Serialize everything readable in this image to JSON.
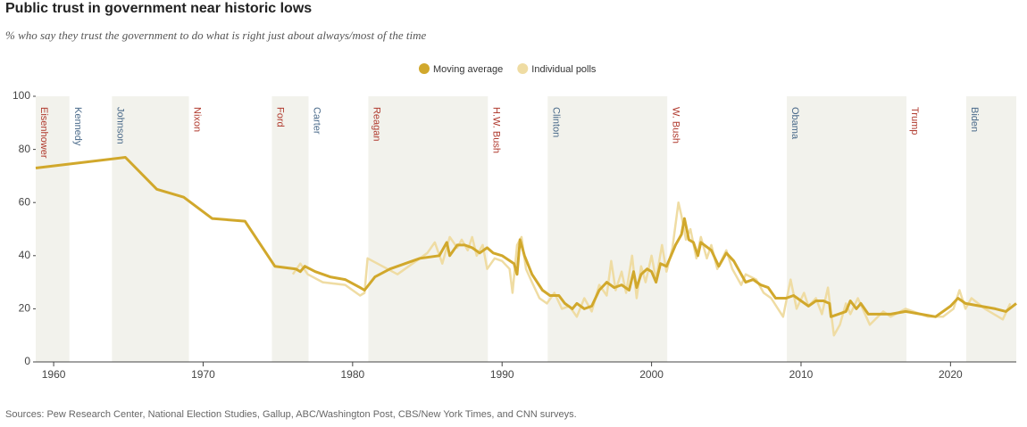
{
  "chart_data": {
    "type": "line",
    "title": "Public trust in government near historic lows",
    "subtitle": "% who say they trust the government to do what is right just about always/most of the time",
    "source": "Sources: Pew Research Center, National Election Studies, Gallup, ABC/Washington Post, CBS/New York Times, and CNN surveys.",
    "xlim": [
      1958.8,
      2024.4
    ],
    "xticks": [
      1960,
      1970,
      1980,
      1990,
      2000,
      2010,
      2020
    ],
    "ylim": [
      0,
      100
    ],
    "yticks": [
      0,
      20,
      40,
      60,
      80,
      100
    ],
    "grid": false,
    "legend": "top",
    "presidents": [
      {
        "name": "Eisenhower",
        "start": 1958.8,
        "color": "#b03a2e"
      },
      {
        "name": "Kennedy",
        "start": 1961.05,
        "color": "#4a6a8a"
      },
      {
        "name": "Johnson",
        "start": 1963.9,
        "color": "#4a6a8a"
      },
      {
        "name": "Nixon",
        "start": 1969.05,
        "color": "#b03a2e"
      },
      {
        "name": "Ford",
        "start": 1974.6,
        "color": "#b03a2e"
      },
      {
        "name": "Carter",
        "start": 1977.05,
        "color": "#4a6a8a"
      },
      {
        "name": "Reagan",
        "start": 1981.05,
        "color": "#b03a2e"
      },
      {
        "name": "H.W. Bush",
        "start": 1989.05,
        "color": "#b03a2e"
      },
      {
        "name": "Clinton",
        "start": 1993.05,
        "color": "#4a6a8a"
      },
      {
        "name": "W. Bush",
        "start": 2001.05,
        "color": "#b03a2e"
      },
      {
        "name": "Obama",
        "start": 2009.05,
        "color": "#4a6a8a"
      },
      {
        "name": "Trump",
        "start": 2017.05,
        "color": "#b03a2e"
      },
      {
        "name": "Biden",
        "start": 2021.05,
        "color": "#4a6a8a"
      }
    ],
    "series": [
      {
        "name": "Individual polls",
        "color": "#efdca3",
        "x": [
          1976,
          1976.5,
          1977,
          1978,
          1979.5,
          1980.5,
          1980.8,
          1981,
          1982,
          1983,
          1984.5,
          1985,
          1985.5,
          1986,
          1986.5,
          1987,
          1987.3,
          1987.7,
          1988,
          1988.3,
          1988.7,
          1989,
          1989.5,
          1990,
          1990.5,
          1990.7,
          1991,
          1991.3,
          1991.6,
          1992,
          1992.5,
          1993,
          1993.5,
          1994,
          1994.5,
          1995,
          1995.5,
          1996,
          1996.5,
          1997,
          1997.3,
          1997.6,
          1998,
          1998.3,
          1998.7,
          1999,
          1999.3,
          1999.6,
          2000,
          2000.3,
          2000.7,
          2001,
          2001.4,
          2001.8,
          2002,
          2002.3,
          2002.6,
          2003,
          2003.3,
          2003.7,
          2004,
          2004.4,
          2005,
          2005.4,
          2006,
          2006.3,
          2007,
          2007.5,
          2008,
          2008.8,
          2009.3,
          2009.7,
          2010.2,
          2010.5,
          2011,
          2011.4,
          2011.8,
          2012.2,
          2012.6,
          2013,
          2013.3,
          2013.8,
          2014.2,
          2014.6,
          2015.5,
          2016,
          2017,
          2018.5,
          2019.5,
          2020.2,
          2020.6,
          2021,
          2021.4,
          2022.3,
          2023.5,
          2024
        ],
        "values": [
          33,
          37,
          33,
          30,
          29,
          25,
          26,
          39,
          36,
          33,
          39,
          41,
          45,
          37,
          47,
          43,
          46,
          42,
          47,
          40,
          44,
          35,
          39,
          38,
          35,
          26,
          44,
          47,
          35,
          30,
          24,
          22,
          26,
          20,
          21,
          17,
          24,
          19,
          29,
          25,
          38,
          27,
          34,
          26,
          40,
          24,
          36,
          30,
          40,
          31,
          44,
          34,
          43,
          60,
          55,
          46,
          50,
          39,
          47,
          39,
          44,
          35,
          42,
          35,
          29,
          33,
          31,
          26,
          24,
          17,
          31,
          20,
          26,
          21,
          24,
          18,
          28,
          10,
          14,
          22,
          18,
          24,
          19,
          14,
          19,
          17,
          20,
          17,
          17,
          20,
          27,
          20,
          24,
          20,
          16,
          22
        ]
      },
      {
        "name": "Moving average",
        "color": "#d1a82c",
        "x": [
          1958.8,
          1964.8,
          1966.9,
          1968.7,
          1970.6,
          1972.8,
          1974.8,
          1976.2,
          1976.5,
          1976.8,
          1977.5,
          1978.5,
          1979.5,
          1980.5,
          1980.8,
          1981.5,
          1982.5,
          1984.5,
          1985.8,
          1986.3,
          1986.5,
          1987,
          1987.5,
          1988,
          1988.5,
          1989,
          1989.4,
          1990,
          1990.8,
          1991,
          1991.2,
          1991.5,
          1992,
          1992.7,
          1993.2,
          1993.8,
          1994.2,
          1994.7,
          1995,
          1995.5,
          1996,
          1996.5,
          1997,
          1997.5,
          1998,
          1998.5,
          1998.8,
          1999,
          1999.3,
          1999.7,
          2000,
          2000.3,
          2000.6,
          2001,
          2001.3,
          2001.6,
          2002,
          2002.2,
          2002.5,
          2002.8,
          2003.1,
          2003.3,
          2004,
          2004.5,
          2005,
          2005.5,
          2006,
          2006.3,
          2006.8,
          2007.3,
          2007.8,
          2008.3,
          2009,
          2009.5,
          2010,
          2010.5,
          2011,
          2011.5,
          2011.9,
          2012,
          2012.5,
          2013,
          2013.3,
          2013.7,
          2014,
          2014.5,
          2015,
          2016,
          2017,
          2018,
          2019,
          2020,
          2020.5,
          2021,
          2022,
          2023,
          2023.7,
          2024.4
        ],
        "values": [
          73,
          77,
          65,
          62,
          54,
          53,
          36,
          35,
          34,
          36,
          34,
          32,
          31,
          28,
          27,
          32,
          35,
          39,
          40,
          45,
          40,
          44,
          44,
          43,
          41,
          43,
          41,
          40,
          37,
          33,
          46,
          40,
          33,
          27,
          25,
          25,
          22,
          20,
          22,
          20,
          21,
          27,
          30,
          28,
          29,
          27,
          34,
          28,
          33,
          35,
          34,
          30,
          37,
          36,
          40,
          44,
          48,
          54,
          46,
          45,
          40,
          45,
          42,
          36,
          41,
          38,
          33,
          30,
          31,
          29,
          28,
          24,
          24,
          25,
          23,
          21,
          23,
          23,
          22,
          17,
          18,
          19,
          23,
          20,
          22,
          18,
          18,
          18,
          19,
          18,
          17,
          21,
          24,
          22,
          21,
          20,
          19,
          22
        ]
      }
    ]
  }
}
